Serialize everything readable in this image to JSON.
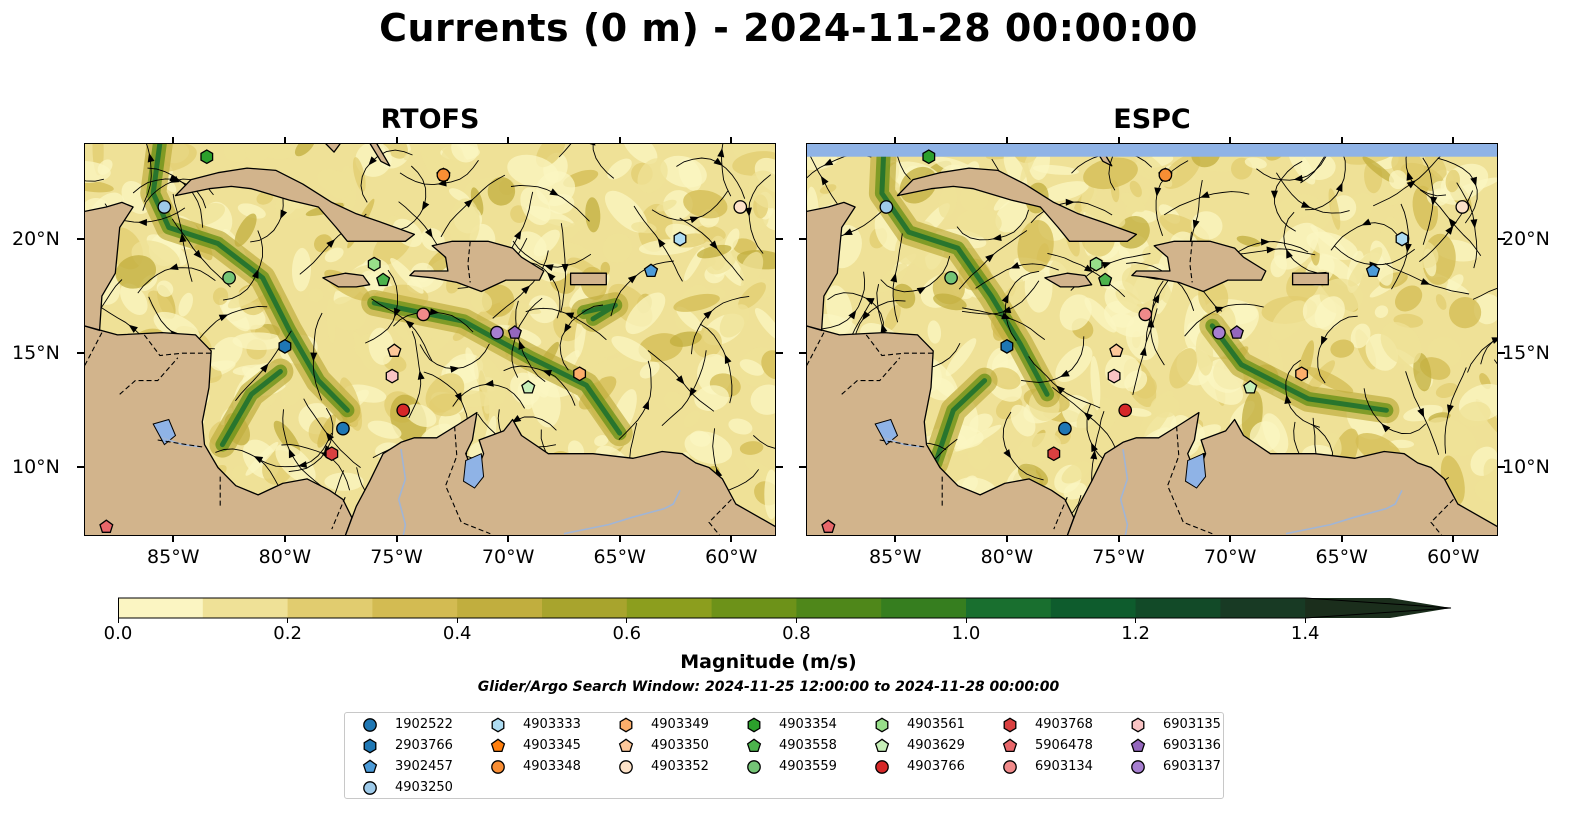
{
  "title": "Currents (0 m) - 2024-11-28 00:00:00",
  "panels": [
    {
      "id": "rtofs",
      "title": "RTOFS"
    },
    {
      "id": "espc",
      "title": "ESPC"
    }
  ],
  "map_extent": {
    "lon": [
      -89,
      -58
    ],
    "lat": [
      7,
      24.2
    ]
  },
  "lon_ticks": [
    -85,
    -80,
    -75,
    -70,
    -65,
    -60
  ],
  "lon_tick_labels": [
    "85°W",
    "80°W",
    "75°W",
    "70°W",
    "65°W",
    "60°W"
  ],
  "lat_ticks": [
    10,
    15,
    20
  ],
  "lat_tick_labels": [
    "10°N",
    "15°N",
    "20°N"
  ],
  "colorbar": {
    "label": "Magnitude (m/s)",
    "min": 0.0,
    "max": 1.5,
    "extend": "max",
    "ticks": [
      0.0,
      0.2,
      0.4,
      0.6,
      0.8,
      1.0,
      1.2,
      1.4
    ],
    "tick_labels": [
      "0.0",
      "0.2",
      "0.4",
      "0.6",
      "0.8",
      "1.0",
      "1.2",
      "1.4"
    ],
    "colors": [
      "#fbf5c2",
      "#efe197",
      "#e1cc6f",
      "#d3bb52",
      "#c1ae3e",
      "#a8a42d",
      "#8c9e1e",
      "#6d9219",
      "#4f871a",
      "#367e1f",
      "#196f2f",
      "#0e5c2d",
      "#124a28",
      "#183a24",
      "#1b2e1c"
    ]
  },
  "search_window": "Glider/Argo Search Window: 2024-11-25 12:00:00 to 2024-11-28 00:00:00",
  "colors": {
    "land": "#d2b48c",
    "lake": "#8fb3e6",
    "river": "#a0b5d6",
    "nodata": "#8fb3e6"
  },
  "legend": [
    {
      "id": "1902522",
      "marker": "circle",
      "color": "#1f77b4"
    },
    {
      "id": "2903766",
      "marker": "hexagon",
      "color": "#1f77b4"
    },
    {
      "id": "3902457",
      "marker": "pentagon",
      "color": "#4c9bd8"
    },
    {
      "id": "4903250",
      "marker": "circle",
      "color": "#9ecae9"
    },
    {
      "id": "4903333",
      "marker": "hexagon",
      "color": "#aedcf2"
    },
    {
      "id": "4903345",
      "marker": "pentagon",
      "color": "#ff7f0e"
    },
    {
      "id": "4903348",
      "marker": "circle",
      "color": "#f98e34"
    },
    {
      "id": "4903349",
      "marker": "hexagon",
      "color": "#fdae6b"
    },
    {
      "id": "4903350",
      "marker": "pentagon",
      "color": "#fdc89a"
    },
    {
      "id": "4903352",
      "marker": "circle",
      "color": "#fde2c8"
    },
    {
      "id": "4903354",
      "marker": "hexagon",
      "color": "#2ca02c"
    },
    {
      "id": "4903558",
      "marker": "pentagon",
      "color": "#4cb34c"
    },
    {
      "id": "4903559",
      "marker": "circle",
      "color": "#74c476"
    },
    {
      "id": "4903561",
      "marker": "hexagon",
      "color": "#98df8a"
    },
    {
      "id": "4903629",
      "marker": "pentagon",
      "color": "#c7efb8"
    },
    {
      "id": "4903766",
      "marker": "circle",
      "color": "#d62728"
    },
    {
      "id": "4903768",
      "marker": "hexagon",
      "color": "#d94040"
    },
    {
      "id": "5906478",
      "marker": "pentagon",
      "color": "#e8676a"
    },
    {
      "id": "6903134",
      "marker": "circle",
      "color": "#f08a8a"
    },
    {
      "id": "6903135",
      "marker": "hexagon",
      "color": "#f9c4c4"
    },
    {
      "id": "6903136",
      "marker": "pentagon",
      "color": "#9467bd"
    },
    {
      "id": "6903137",
      "marker": "circle",
      "color": "#a77fd0"
    }
  ],
  "floats": [
    {
      "id": "1902522",
      "lon": -77.4,
      "lat": 11.7
    },
    {
      "id": "2903766",
      "lon": -80.0,
      "lat": 15.3
    },
    {
      "id": "3902457",
      "lon": -63.6,
      "lat": 18.6
    },
    {
      "id": "4903250",
      "lon": -85.4,
      "lat": 21.4
    },
    {
      "id": "4903333",
      "lon": -62.3,
      "lat": 20.0
    },
    {
      "id": "4903345",
      "lon": -72.9,
      "lat": 22.8
    },
    {
      "id": "4903348",
      "lon": -72.9,
      "lat": 22.8
    },
    {
      "id": "4903349",
      "lon": -66.8,
      "lat": 14.1
    },
    {
      "id": "4903350",
      "lon": -75.1,
      "lat": 15.1
    },
    {
      "id": "4903352",
      "lon": -59.6,
      "lat": 21.4
    },
    {
      "id": "4903354",
      "lon": -83.5,
      "lat": 23.6
    },
    {
      "id": "4903558",
      "lon": -75.6,
      "lat": 18.2
    },
    {
      "id": "4903559",
      "lon": -82.5,
      "lat": 18.3
    },
    {
      "id": "4903561",
      "lon": -76.0,
      "lat": 18.9
    },
    {
      "id": "4903629",
      "lon": -69.1,
      "lat": 13.5
    },
    {
      "id": "4903766",
      "lon": -74.7,
      "lat": 12.5
    },
    {
      "id": "4903768",
      "lon": -77.9,
      "lat": 10.6
    },
    {
      "id": "5906478",
      "lon": -88.0,
      "lat": 7.4
    },
    {
      "id": "6903134",
      "lon": -73.8,
      "lat": 16.7
    },
    {
      "id": "6903135",
      "lon": -75.2,
      "lat": 14.0
    },
    {
      "id": "6903136",
      "lon": -69.7,
      "lat": 15.9
    },
    {
      "id": "6903137",
      "lon": -70.5,
      "lat": 15.9
    }
  ]
}
